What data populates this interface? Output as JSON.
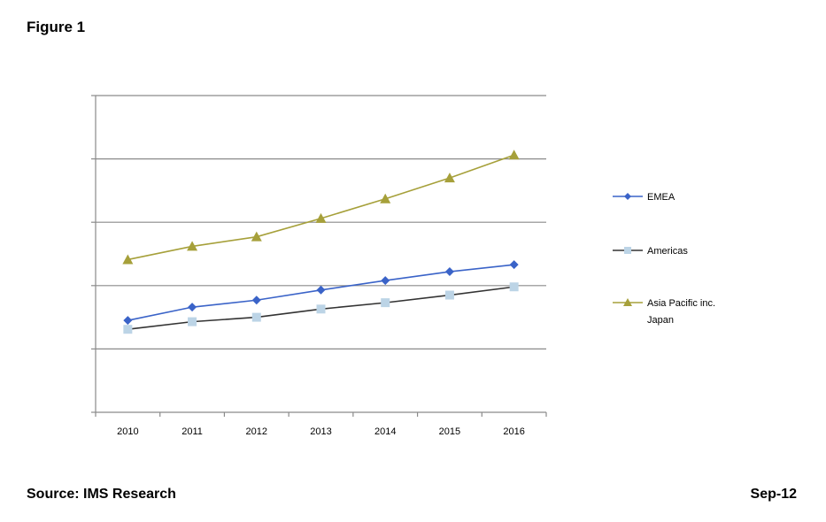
{
  "figure_title": "Figure 1",
  "footer": {
    "source": "Source: IMS Research",
    "date": "Sep-12"
  },
  "chart_data": {
    "type": "line",
    "title": "",
    "xlabel": "",
    "ylabel": "",
    "x": [
      "2010",
      "2011",
      "2012",
      "2013",
      "2014",
      "2015",
      "2016"
    ],
    "ylim": [
      0,
      5
    ],
    "y_gridlines": [
      1,
      2,
      3,
      4,
      5
    ],
    "y_tick_labels_shown": false,
    "grid": true,
    "legend_position": "right",
    "series": [
      {
        "name": "EMEA",
        "color": "#3a63c8",
        "marker": "diamond",
        "values": [
          1.45,
          1.66,
          1.77,
          1.93,
          2.08,
          2.22,
          2.33
        ]
      },
      {
        "name": "Americas",
        "color": "#333333",
        "marker_color": "#bcd4e6",
        "marker": "square",
        "values": [
          1.31,
          1.43,
          1.5,
          1.63,
          1.73,
          1.85,
          1.98
        ]
      },
      {
        "name": "Asia Pacific inc. Japan",
        "legend_lines": [
          "Asia Pacific inc.",
          "Japan"
        ],
        "color": "#a6a03a",
        "marker": "triangle",
        "values": [
          2.41,
          2.62,
          2.77,
          3.06,
          3.37,
          3.7,
          4.06
        ]
      }
    ]
  }
}
